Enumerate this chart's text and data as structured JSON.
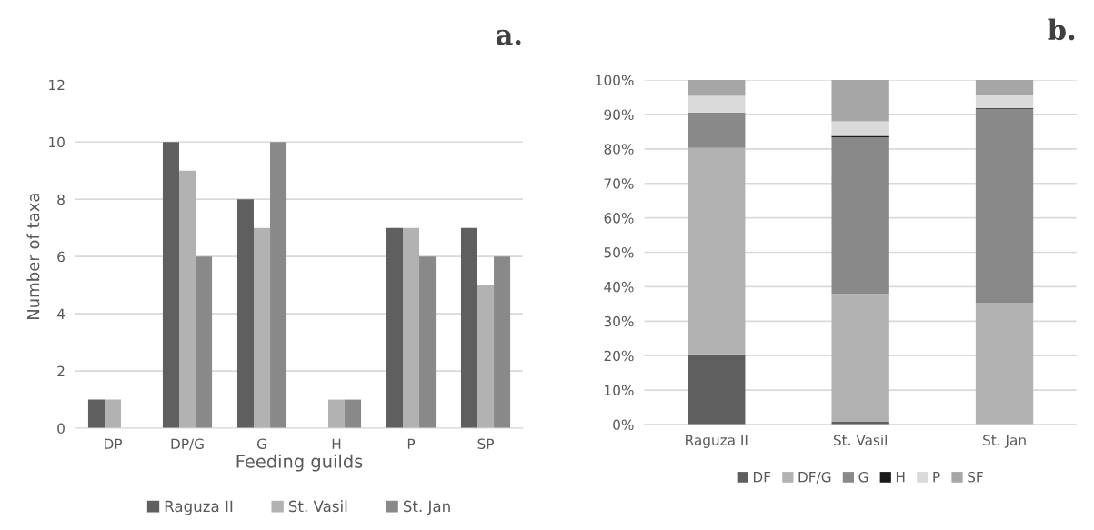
{
  "chart_data": [
    {
      "type": "bar",
      "categories": [
        "DP",
        "DP/G",
        "G",
        "H",
        "P",
        "SP"
      ],
      "xlabel": "Feeding guilds",
      "ylabel": "Number of taxa",
      "ylim": [
        0,
        12
      ],
      "yticks": [
        0,
        2,
        4,
        6,
        8,
        10,
        12
      ],
      "grid": "y",
      "legend": "bottom",
      "annotations": [
        "a."
      ],
      "series": [
        {
          "name": "Raguza II",
          "color": "#5f5f5f",
          "values": [
            1,
            10,
            8,
            0,
            7,
            7
          ]
        },
        {
          "name": "St. Vasil",
          "color": "#b2b2b2",
          "values": [
            1,
            9,
            7,
            1,
            7,
            5
          ]
        },
        {
          "name": "St. Jan",
          "color": "#898989",
          "values": [
            0,
            6,
            10,
            1,
            6,
            6
          ]
        }
      ]
    },
    {
      "type": "bar",
      "stacked": true,
      "categories": [
        "Raguza II",
        "St. Vasil",
        "St. Jan"
      ],
      "ylim": [
        0,
        100
      ],
      "yticks": [
        {
          "value": 0,
          "label": "0%"
        },
        {
          "value": 10,
          "label": "10%"
        },
        {
          "value": 20,
          "label": "20%"
        },
        {
          "value": 30,
          "label": "30%"
        },
        {
          "value": 40,
          "label": "40%"
        },
        {
          "value": 50,
          "label": "50%"
        },
        {
          "value": 60,
          "label": "60%"
        },
        {
          "value": 70,
          "label": "70%"
        },
        {
          "value": 80,
          "label": "80%"
        },
        {
          "value": 90,
          "label": "90%"
        },
        {
          "value": 100,
          "label": "100%"
        }
      ],
      "grid": "y",
      "legend": "bottom",
      "annotations": [
        "b."
      ],
      "series": [
        {
          "name": "DF",
          "color": "#5f5f5f",
          "values": [
            20.4,
            0.8,
            0
          ]
        },
        {
          "name": "DF/G",
          "color": "#b2b2b2",
          "values": [
            59.9,
            37.1,
            35.2
          ]
        },
        {
          "name": "G",
          "color": "#898989",
          "values": [
            10.3,
            45.5,
            56.4
          ]
        },
        {
          "name": "H",
          "color": "#1a1a1a",
          "values": [
            0,
            0.4,
            0.2
          ]
        },
        {
          "name": "P",
          "color": "#dadada",
          "values": [
            4.8,
            4.2,
            3.8
          ]
        },
        {
          "name": "SF",
          "color": "#a6a6a6",
          "values": [
            4.6,
            12.0,
            4.4
          ]
        }
      ]
    }
  ]
}
